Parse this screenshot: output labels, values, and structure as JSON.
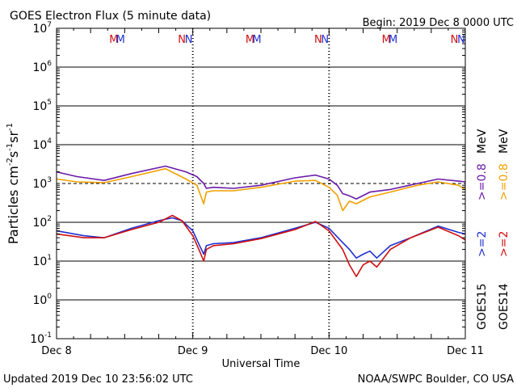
{
  "chart_data": {
    "type": "line",
    "title": "GOES Electron Flux (5 minute data)",
    "begin": "Begin: 2019 Dec 8 0000 UTC",
    "xlabel": "Universal Time",
    "ylabel_parts": [
      "Particles cm",
      "-2",
      "s",
      "-1",
      "sr",
      "-1"
    ],
    "x_ticks": [
      "Dec 8",
      "Dec 9",
      "Dec 10",
      "Dec 11"
    ],
    "y_ticks": [
      {
        "base": "10",
        "exp": "7"
      },
      {
        "base": "10",
        "exp": "6"
      },
      {
        "base": "10",
        "exp": "5"
      },
      {
        "base": "10",
        "exp": "4"
      },
      {
        "base": "10",
        "exp": "3"
      },
      {
        "base": "10",
        "exp": "2"
      },
      {
        "base": "10",
        "exp": "1"
      },
      {
        "base": "10",
        "exp": "0"
      },
      {
        "base": "10",
        "exp": "-1"
      }
    ],
    "xlim_days": [
      0,
      3
    ],
    "ylim_log10": [
      -1,
      7
    ],
    "grid_decades": [
      0,
      1,
      2,
      4,
      5,
      6
    ],
    "threshold": 1000,
    "markers": [
      {
        "label": "M",
        "color": "#d01010",
        "day": 0.42
      },
      {
        "label": "M",
        "color": "#2030d0",
        "day": 0.47
      },
      {
        "label": "N",
        "color": "#d01010",
        "day": 0.92
      },
      {
        "label": "N",
        "color": "#2030d0",
        "day": 0.97
      },
      {
        "label": "M",
        "color": "#d01010",
        "day": 1.42
      },
      {
        "label": "M",
        "color": "#2030d0",
        "day": 1.47
      },
      {
        "label": "N",
        "color": "#d01010",
        "day": 1.92
      },
      {
        "label": "N",
        "color": "#2030d0",
        "day": 1.97
      },
      {
        "label": "M",
        "color": "#d01010",
        "day": 2.42
      },
      {
        "label": "M",
        "color": "#2030d0",
        "day": 2.47
      },
      {
        "label": "N",
        "color": "#d01010",
        "day": 2.92
      },
      {
        "label": "N",
        "color": "#2030d0",
        "day": 2.97
      }
    ],
    "legend": [
      {
        "text": "GOES15",
        "color": "#000000"
      },
      {
        "text": "GOES14",
        "color": "#000000"
      },
      {
        "text": ">=2",
        "color": "#2030d0"
      },
      {
        "text": ">=2",
        "color": "#d01010"
      },
      {
        "text": ">=0.8",
        "color": "#6a1aa8"
      },
      {
        "text": ">=0.8",
        "color": "#f0a000"
      },
      {
        "text": "MeV",
        "color": "#000000"
      },
      {
        "text": "MeV",
        "color": "#000000"
      }
    ],
    "series": [
      {
        "name": "GOES15 >=0.8 MeV",
        "color": "#6a1aa8",
        "x": [
          0.0,
          0.15,
          0.35,
          0.55,
          0.8,
          0.95,
          1.03,
          1.08,
          1.1,
          1.15,
          1.3,
          1.5,
          1.75,
          1.9,
          2.0,
          2.06,
          2.1,
          2.15,
          2.2,
          2.3,
          2.45,
          2.65,
          2.8,
          2.95,
          3.0
        ],
        "values": [
          2000,
          1500,
          1200,
          1800,
          2800,
          2000,
          1500,
          1000,
          750,
          800,
          750,
          900,
          1400,
          1650,
          1300,
          900,
          550,
          480,
          400,
          600,
          700,
          1000,
          1300,
          1150,
          1100
        ]
      },
      {
        "name": "GOES14 >=0.8 MeV",
        "color": "#f0a000",
        "x": [
          0.0,
          0.15,
          0.35,
          0.55,
          0.8,
          0.95,
          1.03,
          1.08,
          1.1,
          1.15,
          1.3,
          1.5,
          1.75,
          1.9,
          2.0,
          2.06,
          2.1,
          2.15,
          2.2,
          2.3,
          2.45,
          2.65,
          2.8,
          2.95,
          3.0
        ],
        "values": [
          1300,
          1100,
          1050,
          1500,
          2400,
          1300,
          900,
          300,
          600,
          650,
          650,
          800,
          1150,
          1200,
          800,
          500,
          200,
          350,
          300,
          450,
          600,
          900,
          1100,
          900,
          700
        ]
      },
      {
        "name": "GOES15 >=2 MeV",
        "color": "#2030d0",
        "x": [
          0.0,
          0.2,
          0.35,
          0.55,
          0.75,
          0.85,
          0.92,
          1.0,
          1.05,
          1.08,
          1.1,
          1.15,
          1.3,
          1.5,
          1.75,
          1.9,
          2.0,
          2.1,
          2.15,
          2.2,
          2.25,
          2.3,
          2.35,
          2.45,
          2.6,
          2.8,
          2.95,
          3.0
        ],
        "values": [
          60,
          45,
          40,
          70,
          110,
          130,
          110,
          60,
          25,
          15,
          25,
          28,
          30,
          40,
          70,
          100,
          70,
          30,
          20,
          12,
          15,
          18,
          12,
          25,
          40,
          80,
          55,
          50
        ]
      },
      {
        "name": "GOES14 >=2 MeV",
        "color": "#d01010",
        "x": [
          0.0,
          0.2,
          0.35,
          0.55,
          0.75,
          0.85,
          0.92,
          1.0,
          1.05,
          1.08,
          1.1,
          1.15,
          1.3,
          1.5,
          1.75,
          1.9,
          2.0,
          2.1,
          2.15,
          2.2,
          2.25,
          2.3,
          2.35,
          2.45,
          2.6,
          2.8,
          2.95,
          3.0
        ],
        "values": [
          50,
          40,
          40,
          65,
          100,
          150,
          110,
          45,
          18,
          10,
          20,
          25,
          28,
          38,
          65,
          105,
          60,
          20,
          8,
          4,
          8,
          10,
          7,
          20,
          40,
          75,
          45,
          35
        ]
      }
    ]
  },
  "footer": {
    "updated": "Updated 2019 Dec 10 23:56:02 UTC",
    "credit": "NOAA/SWPC Boulder, CO USA"
  }
}
